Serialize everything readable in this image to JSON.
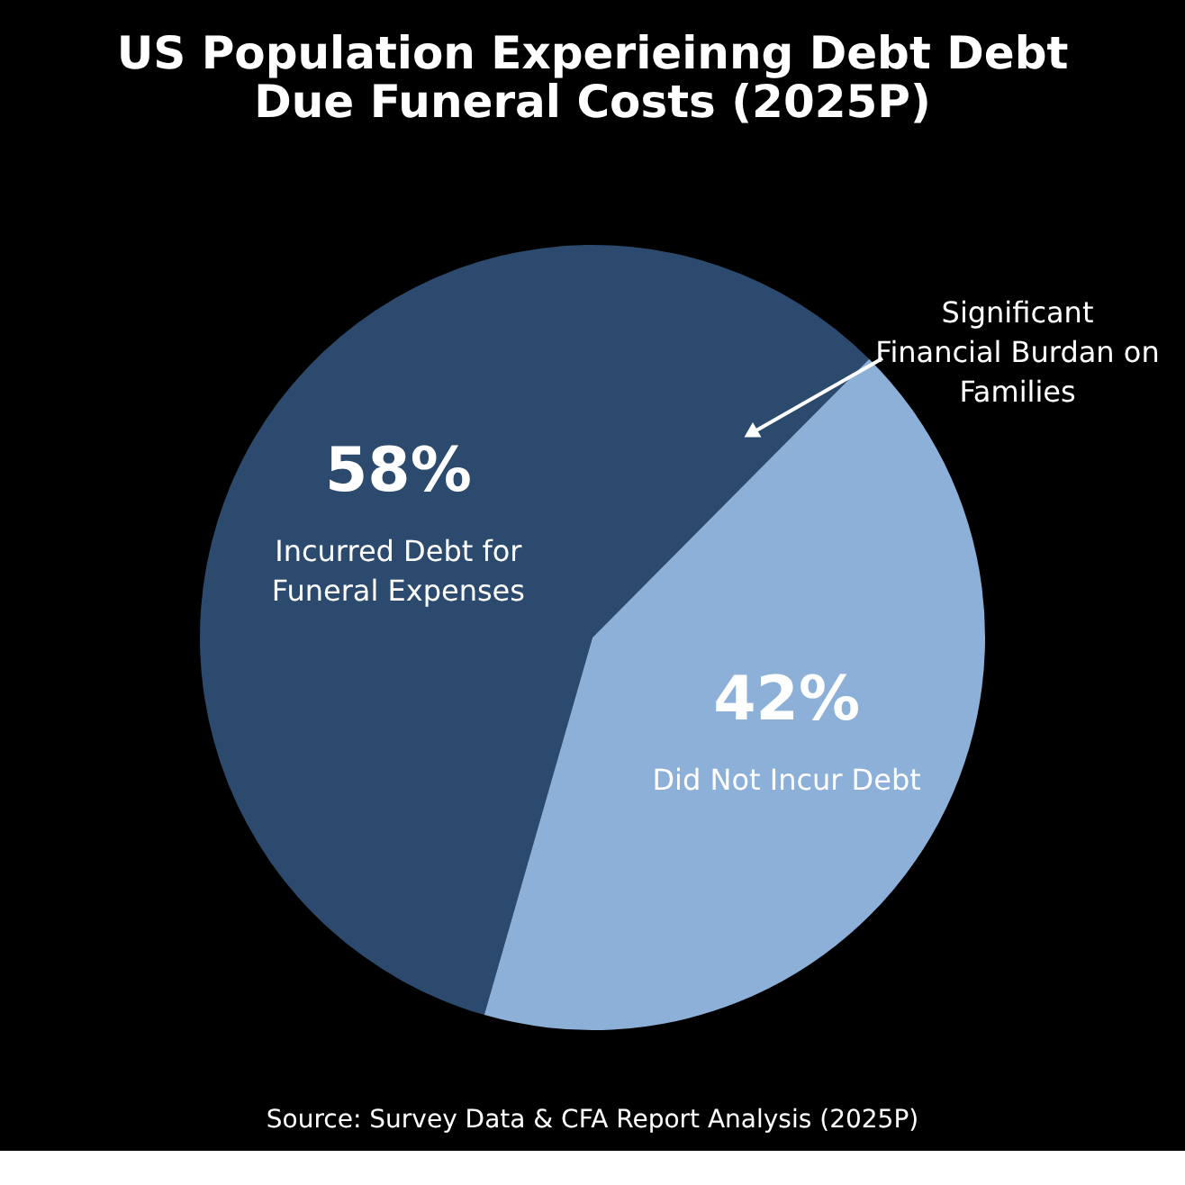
{
  "chart_data": {
    "type": "pie",
    "title": "US Population Experieinng Debt Debt Due Funeral Costs (2025P)",
    "categories": [
      "Incurred Debt for Funeral Expenses",
      "Did Not Incur Debt"
    ],
    "values": [
      58,
      42
    ],
    "colors": [
      "#2b4a6d",
      "#8db0d8"
    ],
    "value_labels": [
      "58%",
      "42%"
    ],
    "legend": false,
    "annotations": [
      "Significant Financial Burdan on Families",
      "Source: Survey Data & CFA Report Analysis (2025P)"
    ]
  }
}
